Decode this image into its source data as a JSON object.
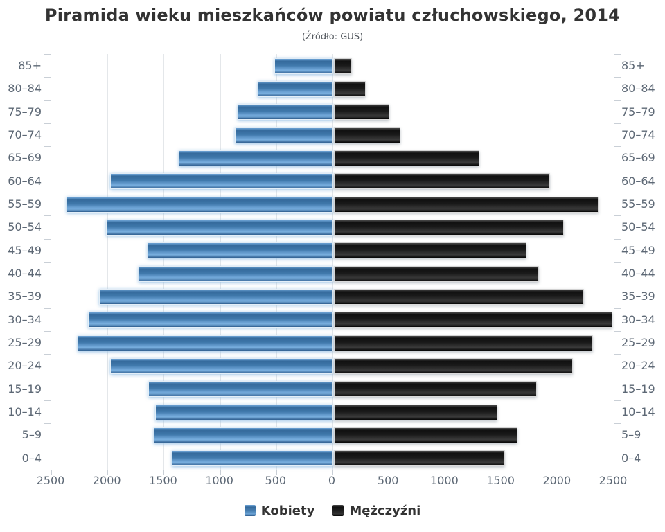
{
  "header": {
    "title": "Piramida wieku mieszkańców powiatu człuchowskiego, 2014",
    "subtitle": "(Źródło: GUS)"
  },
  "legend": {
    "women_label": "Kobiety",
    "men_label": "Mężczyźni",
    "position": "bottom"
  },
  "colors": {
    "women_bar": "#4a82b5",
    "men_bar": "#1a1a1a",
    "axis_text": "#5d6875",
    "title_text": "#333333",
    "gridline": "#e4e7ea"
  },
  "chart_data": {
    "type": "bar",
    "variant": "population-pyramid",
    "title": "Piramida wieku mieszkańców powiatu człuchowskiego, 2014",
    "subtitle": "(Źródło: GUS)",
    "categories": [
      "85+",
      "80–84",
      "75–79",
      "70–74",
      "65–69",
      "60–64",
      "55–59",
      "50–54",
      "45–49",
      "40–44",
      "35–39",
      "30–34",
      "25–29",
      "20–24",
      "15–19",
      "10–14",
      "5–9",
      "0–4"
    ],
    "series": [
      {
        "name": "Kobiety",
        "side": "left",
        "values": [
          510,
          660,
          840,
          860,
          1360,
          1970,
          2360,
          2010,
          1640,
          1720,
          2070,
          2170,
          2260,
          1970,
          1630,
          1570,
          1580,
          1420
        ]
      },
      {
        "name": "Mężczyźni",
        "side": "right",
        "values": [
          150,
          270,
          480,
          580,
          1280,
          1910,
          2340,
          2030,
          1700,
          1810,
          2210,
          2460,
          2290,
          2110,
          1790,
          1440,
          1620,
          1510
        ]
      }
    ],
    "axis_max_per_side": 2500,
    "x_tick_labels": [
      "2500",
      "2000",
      "1500",
      "1000",
      "500",
      "0",
      "500",
      "1000",
      "1500",
      "2000",
      "2500"
    ],
    "grid": true,
    "legend_position": "bottom"
  }
}
